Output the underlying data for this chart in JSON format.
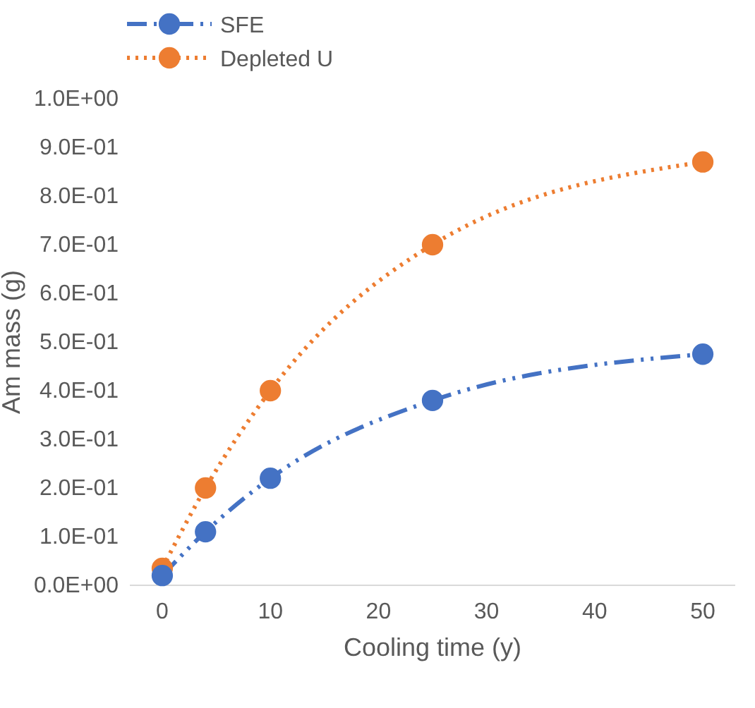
{
  "chart_data": {
    "type": "line",
    "xlabel": "Cooling time (y)",
    "ylabel": "Am mass (g)",
    "x": [
      0,
      4,
      10,
      25,
      50
    ],
    "series": [
      {
        "name": "SFE",
        "color": "#4472c4",
        "values": [
          0.02,
          0.11,
          0.22,
          0.38,
          0.475
        ],
        "line_style": "dashed"
      },
      {
        "name": "Depleted U",
        "color": "#ed7d31",
        "values": [
          0.035,
          0.2,
          0.4,
          0.7,
          0.87
        ],
        "line_style": "dotted"
      }
    ],
    "xlim": [
      -3,
      53
    ],
    "xticks": [
      0,
      10,
      20,
      30,
      40,
      50
    ],
    "ylim": [
      0,
      1
    ],
    "yticks": [
      {
        "value": 0,
        "label": "0.0E+00"
      },
      {
        "value": 0.1,
        "label": "1.0E-01"
      },
      {
        "value": 0.2,
        "label": "2.0E-01"
      },
      {
        "value": 0.3,
        "label": "3.0E-01"
      },
      {
        "value": 0.4,
        "label": "4.0E-01"
      },
      {
        "value": 0.5,
        "label": "5.0E-01"
      },
      {
        "value": 0.6,
        "label": "6.0E-01"
      },
      {
        "value": 0.7,
        "label": "7.0E-01"
      },
      {
        "value": 0.8,
        "label": "8.0E-01"
      },
      {
        "value": 0.9,
        "label": "9.0E-01"
      },
      {
        "value": 1,
        "label": "1.0E+00"
      }
    ],
    "marker": "circle",
    "legend": "top left",
    "grid": false
  }
}
